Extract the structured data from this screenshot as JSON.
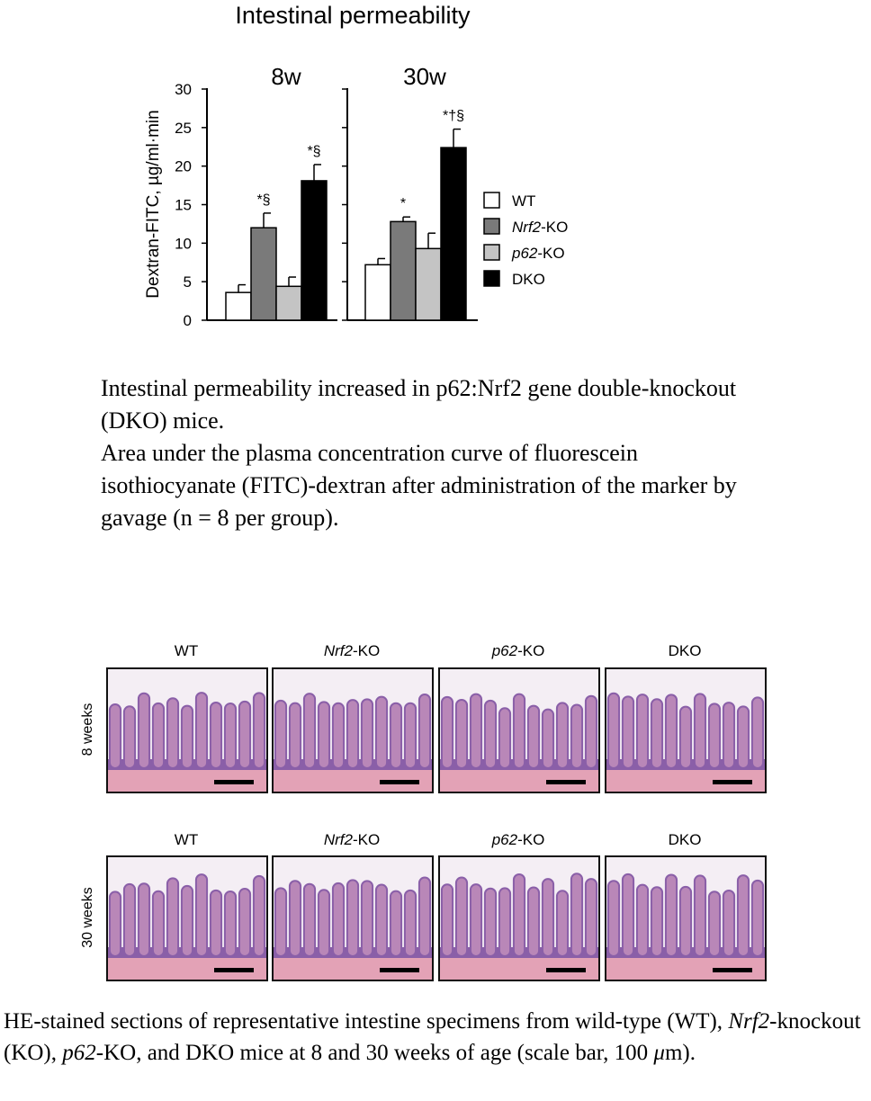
{
  "chart_data": {
    "type": "bar",
    "title": "Intestinal permeability",
    "ylabel": "Dextran-FITC, µg/ml·min",
    "ylim": [
      0,
      30
    ],
    "yticks": [
      0,
      5,
      10,
      15,
      20,
      25,
      30
    ],
    "panels": [
      {
        "label": "8w",
        "bars": [
          {
            "group": "WT",
            "value": 3.6,
            "err": 1.0,
            "sig": ""
          },
          {
            "group": "Nrf2-KO",
            "value": 12.0,
            "err": 1.9,
            "sig": "*§"
          },
          {
            "group": "p62-KO",
            "value": 4.4,
            "err": 1.2,
            "sig": ""
          },
          {
            "group": "DKO",
            "value": 18.1,
            "err": 2.1,
            "sig": "*§"
          }
        ]
      },
      {
        "label": "30w",
        "bars": [
          {
            "group": "WT",
            "value": 7.2,
            "err": 0.8,
            "sig": ""
          },
          {
            "group": "Nrf2-KO",
            "value": 12.8,
            "err": 0.6,
            "sig": "*"
          },
          {
            "group": "p62-KO",
            "value": 9.3,
            "err": 2.0,
            "sig": ""
          },
          {
            "group": "DKO",
            "value": 22.4,
            "err": 2.4,
            "sig": "*†§"
          }
        ]
      }
    ],
    "legend": [
      {
        "prefix": "",
        "italic": "",
        "suffix": "WT",
        "color": "#ffffff"
      },
      {
        "prefix": "",
        "italic": "Nrf2",
        "suffix": "-KO",
        "color": "#7a7a7a"
      },
      {
        "prefix": "",
        "italic": "p62",
        "suffix": "-KO",
        "color": "#c4c4c4"
      },
      {
        "prefix": "",
        "italic": "",
        "suffix": "DKO",
        "color": "#000000"
      }
    ],
    "legend_position": "right"
  },
  "caption_top": [
    "Intestinal permeability increased in p62:Nrf2 gene double-knockout (DKO) mice.",
    "Area under the plasma concentration curve of fluorescein isothiocyanate (FITC)-dextran after administration of the marker by gavage (n = 8 per group)."
  ],
  "histology": {
    "rows": [
      {
        "label": "8 weeks",
        "villus_height": 0.78,
        "columns": [
          {
            "prefix": "",
            "italic": "",
            "suffix": "WT"
          },
          {
            "prefix": "",
            "italic": "Nrf2",
            "suffix": "-KO"
          },
          {
            "prefix": "",
            "italic": "p62",
            "suffix": "-KO"
          },
          {
            "prefix": "",
            "italic": "",
            "suffix": "DKO"
          }
        ]
      },
      {
        "label": "30 weeks",
        "villus_height": 0.85,
        "columns": [
          {
            "prefix": "",
            "italic": "",
            "suffix": "WT"
          },
          {
            "prefix": "",
            "italic": "Nrf2",
            "suffix": "-KO"
          },
          {
            "prefix": "",
            "italic": "p62",
            "suffix": "-KO"
          },
          {
            "prefix": "",
            "italic": "",
            "suffix": "DKO"
          }
        ]
      }
    ],
    "colors": {
      "tissue": "#b987b8",
      "epithelium": "#8a5fa8",
      "lumen": "#f4eef4",
      "submucosa": "#e3a2b6",
      "scale_bar": "#000000"
    }
  },
  "caption_bottom": {
    "p1": "HE-stained sections of representative intestine specimens from wild-type (WT), ",
    "i1": "Nrf2",
    "p2": "-knockout (KO), ",
    "i2": "p62",
    "p3": "-KO, and DKO mice at 8 and 30 weeks of age (scale bar, 100 ",
    "unit_sym": "μ",
    "p4": "m)."
  }
}
